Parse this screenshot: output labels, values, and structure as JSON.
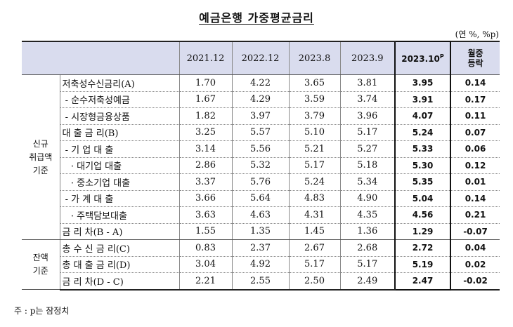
{
  "title": "예금은행 가중평균금리",
  "unit": "(연 %, %p)",
  "header": {
    "col1": "2021.12",
    "col2": "2022.12",
    "col3": "2023.8",
    "col4": "2023.9",
    "col5": "2023.10",
    "col5_sup": "P",
    "col6_line1": "월중",
    "col6_line2": "등락"
  },
  "groups": [
    {
      "label_lines": [
        "신규",
        "취급액",
        "기준"
      ]
    },
    {
      "label_lines": [
        "잔액",
        "기준"
      ]
    }
  ],
  "rows": [
    {
      "item": "저축성수신금리(A)",
      "v": [
        "1.70",
        "4.22",
        "3.65",
        "3.81",
        "3.95",
        "0.14"
      ]
    },
    {
      "item": " - 순수저축성예금",
      "v": [
        "1.67",
        "4.29",
        "3.59",
        "3.74",
        "3.91",
        "0.17"
      ]
    },
    {
      "item": " - 시장형금융상품",
      "v": [
        "1.82",
        "3.97",
        "3.79",
        "3.96",
        "4.07",
        "0.11"
      ]
    },
    {
      "item": "대 출 금 리(B)",
      "v": [
        "3.25",
        "5.57",
        "5.10",
        "5.17",
        "5.24",
        "0.07"
      ]
    },
    {
      "item": " - 기 업 대 출",
      "v": [
        "3.14",
        "5.56",
        "5.21",
        "5.27",
        "5.33",
        "0.06"
      ]
    },
    {
      "item": "   · 대기업 대출",
      "v": [
        "2.86",
        "5.32",
        "5.17",
        "5.18",
        "5.30",
        "0.12"
      ]
    },
    {
      "item": "   · 중소기업 대출",
      "v": [
        "3.37",
        "5.76",
        "5.24",
        "5.34",
        "5.35",
        "0.01"
      ]
    },
    {
      "item": " - 가 계 대 출",
      "v": [
        "3.66",
        "5.64",
        "4.83",
        "4.90",
        "5.04",
        "0.14"
      ]
    },
    {
      "item": "   · 주택담보대출",
      "v": [
        "3.63",
        "4.63",
        "4.31",
        "4.35",
        "4.56",
        "0.21"
      ]
    },
    {
      "item": "금 리 차(B - A)",
      "v": [
        "1.55",
        "1.35",
        "1.45",
        "1.36",
        "1.29",
        "-0.07"
      ]
    },
    {
      "item": "총 수 신 금 리(C)",
      "v": [
        "0.83",
        "2.37",
        "2.67",
        "2.68",
        "2.72",
        "0.04"
      ]
    },
    {
      "item": "총 대 출 금 리(D)",
      "v": [
        "3.04",
        "4.92",
        "5.17",
        "5.17",
        "5.19",
        "0.02"
      ]
    },
    {
      "item": "금 리 차(D - C)",
      "v": [
        "2.21",
        "2.55",
        "2.50",
        "2.49",
        "2.47",
        "-0.02"
      ]
    }
  ],
  "note": "주 : p는 잠정치"
}
